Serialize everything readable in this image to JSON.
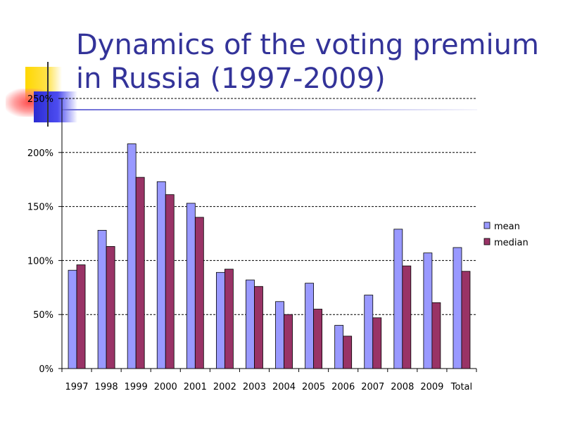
{
  "slide": {
    "title_line1": "Dynamics of the voting premium",
    "title_line2": "in Russia (1997-2009)"
  },
  "colors": {
    "title": "#333399",
    "mean": "#9999ff",
    "median": "#993366"
  },
  "chart_data": {
    "type": "bar",
    "title": "",
    "xlabel": "",
    "ylabel": "",
    "categories": [
      "1997",
      "1998",
      "1999",
      "2000",
      "2001",
      "2002",
      "2003",
      "2004",
      "2005",
      "2006",
      "2007",
      "2008",
      "2009",
      "Total"
    ],
    "series": [
      {
        "name": "mean",
        "values": [
          91,
          128,
          208,
          173,
          153,
          89,
          82,
          62,
          79,
          40,
          68,
          129,
          107,
          112
        ]
      },
      {
        "name": "median",
        "values": [
          96,
          113,
          177,
          161,
          140,
          92,
          76,
          50,
          55,
          30,
          47,
          95,
          61,
          90
        ]
      }
    ],
    "ylim": [
      0,
      250
    ],
    "yticks": [
      0,
      50,
      100,
      150,
      200,
      250
    ],
    "ytick_labels": [
      "0%",
      "50%",
      "100%",
      "150%",
      "200%",
      "250%"
    ],
    "grid": true,
    "legend_position": "right"
  }
}
